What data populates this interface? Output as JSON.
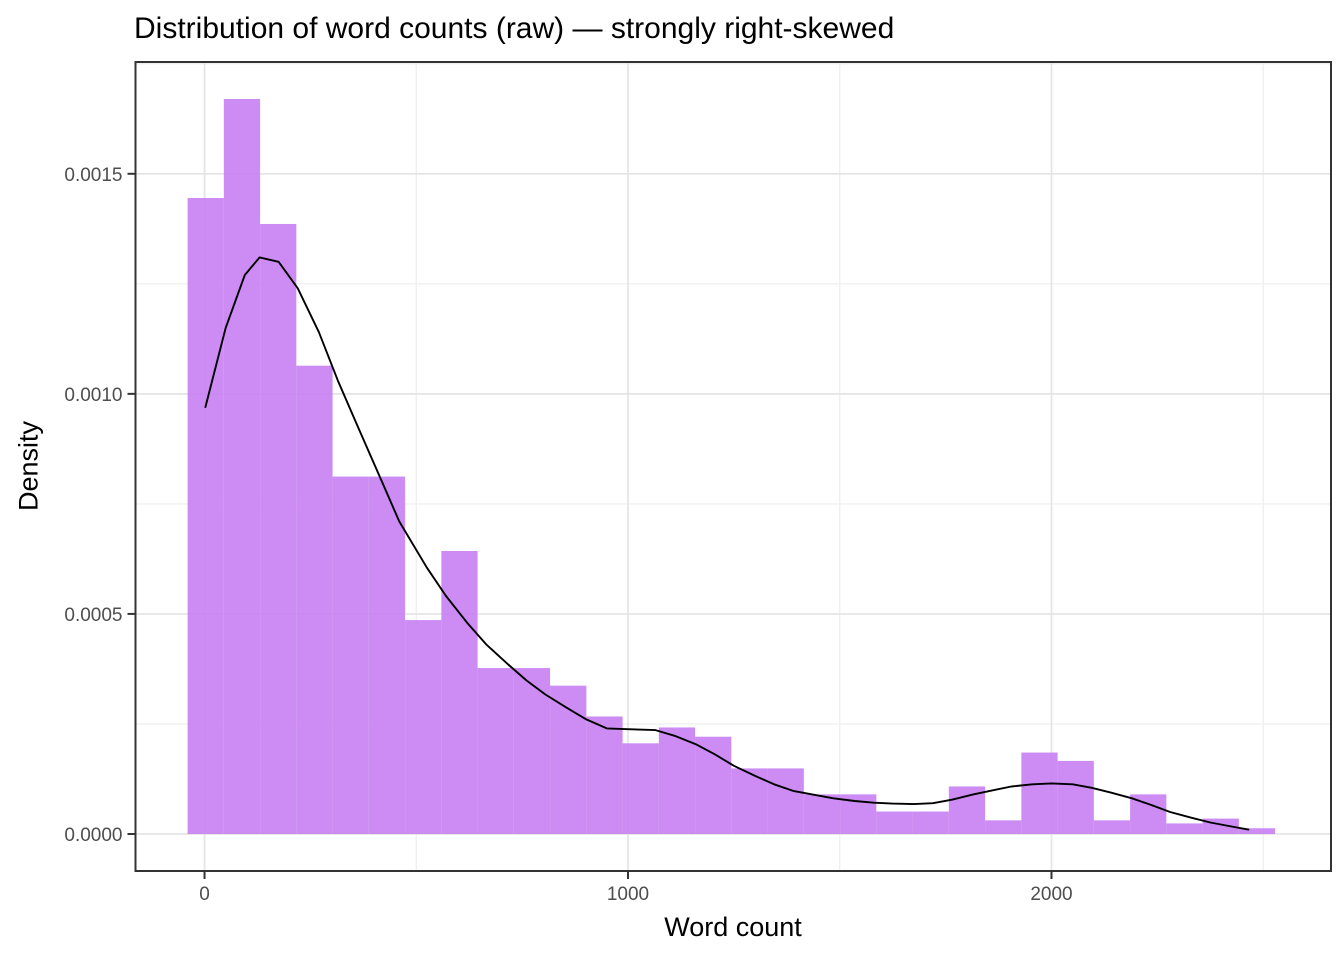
{
  "chart_data": {
    "type": "histogram_with_density_line",
    "title": "Distribution of word counts (raw) — strongly right-skewed",
    "xlabel": "Word count",
    "ylabel": "Density",
    "legend": "none",
    "grid": true,
    "xlim": [
      -163,
      2660
    ],
    "ylim": [
      -8.41e-05,
      0.001754
    ],
    "x_ticks": [
      {
        "value": 0,
        "label": "0"
      },
      {
        "value": 1000,
        "label": "1000"
      },
      {
        "value": 2000,
        "label": "2000"
      }
    ],
    "x_minor_ticks": [
      500,
      1500,
      2500
    ],
    "y_ticks": [
      {
        "value": 0.0,
        "label": "0.0000"
      },
      {
        "value": 0.0005,
        "label": "0.0005"
      },
      {
        "value": 0.001,
        "label": "0.0010"
      },
      {
        "value": 0.0015,
        "label": "0.0015"
      }
    ],
    "y_minor_ticks": [
      0.00025,
      0.00075,
      0.00125,
      0.00175
    ],
    "histogram": {
      "bin_start": -40,
      "bin_width": 85.6,
      "densities": [
        0.001445,
        0.00167,
        0.001386,
        0.001064,
        0.000812,
        0.000812,
        0.000486,
        0.000643,
        0.000377,
        0.000377,
        0.000337,
        0.000267,
        0.000206,
        0.000242,
        0.000221,
        0.000149,
        0.000149,
        9e-05,
        9e-05,
        5.1e-05,
        5.1e-05,
        0.000108,
        3.1e-05,
        0.000185,
        0.000166,
        3.1e-05,
        9e-05,
        2.4e-05,
        3.5e-05,
        1.3e-05
      ]
    },
    "density_curve": {
      "x": [
        2,
        50,
        95,
        130,
        175,
        220,
        270,
        315,
        360,
        410,
        460,
        525,
        570,
        620,
        665,
        715,
        760,
        805,
        855,
        900,
        950,
        1000,
        1065,
        1110,
        1160,
        1205,
        1250,
        1300,
        1345,
        1390,
        1440,
        1485,
        1535,
        1580,
        1625,
        1675,
        1720,
        1765,
        1815,
        1860,
        1905,
        1955,
        2000,
        2050,
        2095,
        2140,
        2190,
        2235,
        2280,
        2330,
        2375,
        2425,
        2465
      ],
      "y": [
        0.00097,
        0.00115,
        0.00127,
        0.00131,
        0.0013,
        0.00124,
        0.00114,
        0.00103,
        0.00093,
        0.00082,
        0.00071,
        0.000605,
        0.000541,
        0.00048,
        0.000431,
        0.000387,
        0.000349,
        0.000317,
        0.000287,
        0.000261,
        0.00024,
        0.000238,
        0.000236,
        0.000223,
        0.000204,
        0.000181,
        0.000155,
        0.000132,
        0.000113,
        9.8e-05,
        8.9e-05,
        8.1e-05,
        7.5e-05,
        7.1e-05,
        6.9e-05,
        6.8e-05,
        7e-05,
        7.8e-05,
        9e-05,
        9.9e-05,
        0.000108,
        0.000113,
        0.000115,
        0.000113,
        0.000105,
        9.4e-05,
        8.1e-05,
        6.6e-05,
        5e-05,
        3.7e-05,
        2.6e-05,
        1.7e-05,
        1e-05
      ]
    },
    "colors": {
      "bar_fill": "#C77FF2",
      "curve": "#000000",
      "grid_major": "#E4E4E4",
      "grid_minor": "#F0F0F0",
      "panel_border": "#333333",
      "tick_mark": "#333333",
      "tick_label": "#4D4D4D",
      "text": "#000000"
    }
  }
}
